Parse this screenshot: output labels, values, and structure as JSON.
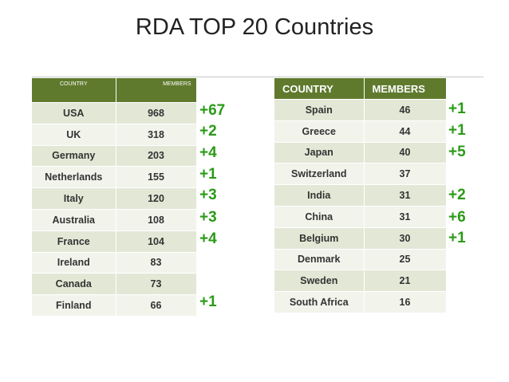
{
  "title": "RDA TOP 20 Countries",
  "left_table": {
    "headers": [
      "COUNTRY",
      "MEMBERS"
    ],
    "rows": [
      {
        "country": "USA",
        "members": "968",
        "delta": "+67"
      },
      {
        "country": "UK",
        "members": "318",
        "delta": "+2"
      },
      {
        "country": "Germany",
        "members": "203",
        "delta": "+4"
      },
      {
        "country": "Netherlands",
        "members": "155",
        "delta": "+1"
      },
      {
        "country": "Italy",
        "members": "120",
        "delta": "+3"
      },
      {
        "country": "Australia",
        "members": "108",
        "delta": "+3"
      },
      {
        "country": "France",
        "members": "104",
        "delta": "+4"
      },
      {
        "country": "Ireland",
        "members": "83",
        "delta": ""
      },
      {
        "country": "Canada",
        "members": "73",
        "delta": ""
      },
      {
        "country": "Finland",
        "members": "66",
        "delta": "+1"
      }
    ]
  },
  "right_table": {
    "headers": [
      "COUNTRY",
      "MEMBERS"
    ],
    "rows": [
      {
        "country": "Spain",
        "members": "46",
        "delta": "+1"
      },
      {
        "country": "Greece",
        "members": "44",
        "delta": "+1"
      },
      {
        "country": "Japan",
        "members": "40",
        "delta": "+5"
      },
      {
        "country": "Switzerland",
        "members": "37",
        "delta": ""
      },
      {
        "country": "India",
        "members": "31",
        "delta": "+2"
      },
      {
        "country": "China",
        "members": "31",
        "delta": "+6"
      },
      {
        "country": "Belgium",
        "members": "30",
        "delta": "+1"
      },
      {
        "country": "Denmark",
        "members": "25",
        "delta": ""
      },
      {
        "country": "Sweden",
        "members": "21",
        "delta": ""
      },
      {
        "country": "South Africa",
        "members": "16",
        "delta": ""
      }
    ]
  },
  "colors": {
    "header_green": "#5f7a2d",
    "row_odd": "#e3e8d6",
    "row_even": "#f2f4ec",
    "delta_green": "#2b9a18"
  }
}
